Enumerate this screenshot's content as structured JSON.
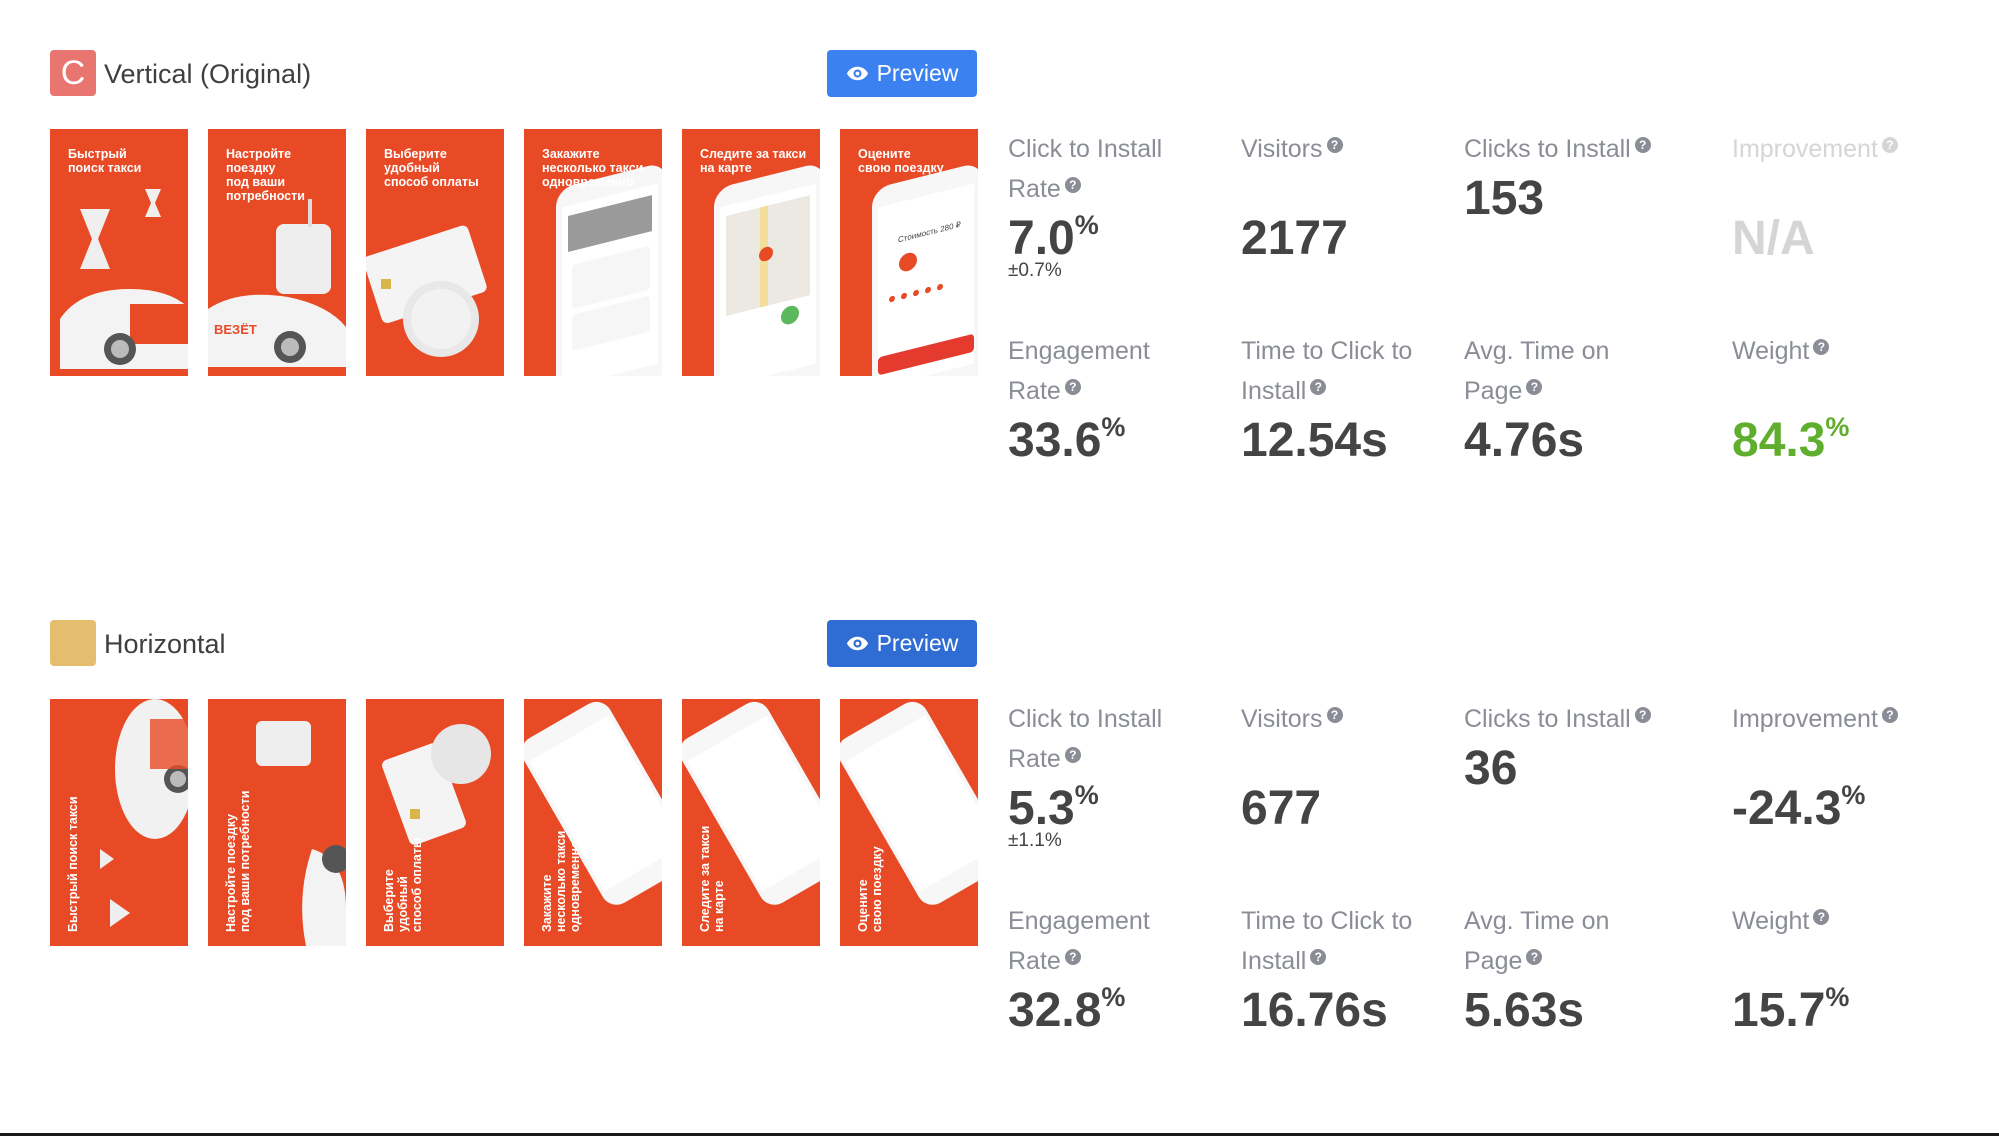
{
  "colors": {
    "thumb_bg": "#e94a26",
    "preview_v1": "#3b82f0",
    "preview_v2": "#2f6dd4",
    "help_icon": "#8a8d96",
    "label": "#8a8d96",
    "value": "#444444",
    "value_positive": "#5fae2e",
    "value_muted": "#d5d5d5"
  },
  "variants": [
    {
      "badge_letter": "C",
      "badge_color": "#e87570",
      "name": "Vertical (Original)",
      "preview_label": "Preview",
      "preview_icon": "eye-icon",
      "orientation": "vertical",
      "thumbnails": [
        {
          "caption": "Быстрый\nпоиск такси",
          "art": "hourglass-and-car"
        },
        {
          "caption": "Настройте\nпоездку\nпод ваши\nпотребности",
          "art": "suitcase-and-car"
        },
        {
          "caption": "Выберите\nудобный\nспособ оплаты",
          "art": "card-and-coins"
        },
        {
          "caption": "Закажите\nнесколько такси\nодновременно",
          "art": "phone-orders"
        },
        {
          "caption": "Следите за такси\nна карте",
          "art": "phone-map"
        },
        {
          "caption": "Оцените\nсвою поездку",
          "art": "phone-rating"
        }
      ],
      "metrics": {
        "click_to_install_rate": {
          "label": "Click to Install Rate",
          "value": "7.0",
          "unit": "%",
          "ci": "±0.7%"
        },
        "visitors": {
          "label": "Visitors",
          "value": "2177"
        },
        "clicks_to_install": {
          "label": "Clicks to Install",
          "value": "153"
        },
        "improvement": {
          "label": "Improvement",
          "value": "N/A",
          "muted": true
        },
        "engagement_rate": {
          "label": "Engagement Rate",
          "value": "33.6",
          "unit": "%"
        },
        "time_to_click": {
          "label": "Time to Click to Install",
          "value": "12.54s"
        },
        "avg_time_on_page": {
          "label": "Avg. Time on Page",
          "value": "4.76s"
        },
        "weight": {
          "label": "Weight",
          "value": "84.3",
          "unit": "%",
          "highlight": true
        }
      }
    },
    {
      "badge_letter": "",
      "badge_color": "#e5bd6e",
      "name": "Horizontal",
      "preview_label": "Preview",
      "preview_icon": "eye-icon",
      "orientation": "horizontal",
      "thumbnails": [
        {
          "caption": "Быстрый поиск такси",
          "art": "hourglass-and-car"
        },
        {
          "caption": "Настройте поездку\nпод ваши потребности",
          "art": "suitcase-and-car"
        },
        {
          "caption": "Выберите\nудобный\nспособ оплаты",
          "art": "card-and-coins"
        },
        {
          "caption": "Закажите\nнесколько такси\nодновременно",
          "art": "phone-orders"
        },
        {
          "caption": "Следите за такси\nна карте",
          "art": "phone-map"
        },
        {
          "caption": "Оцените\nсвою поездку",
          "art": "phone-rating"
        }
      ],
      "metrics": {
        "click_to_install_rate": {
          "label": "Click to Install Rate",
          "value": "5.3",
          "unit": "%",
          "ci": "±1.1%"
        },
        "visitors": {
          "label": "Visitors",
          "value": "677"
        },
        "clicks_to_install": {
          "label": "Clicks to Install",
          "value": "36"
        },
        "improvement": {
          "label": "Improvement",
          "value": "-24.3",
          "unit": "%"
        },
        "engagement_rate": {
          "label": "Engagement Rate",
          "value": "32.8",
          "unit": "%"
        },
        "time_to_click": {
          "label": "Time to Click to Install",
          "value": "16.76s"
        },
        "avg_time_on_page": {
          "label": "Avg. Time on Page",
          "value": "5.63s"
        },
        "weight": {
          "label": "Weight",
          "value": "15.7",
          "unit": "%"
        }
      }
    }
  ],
  "help_glyph": "?"
}
